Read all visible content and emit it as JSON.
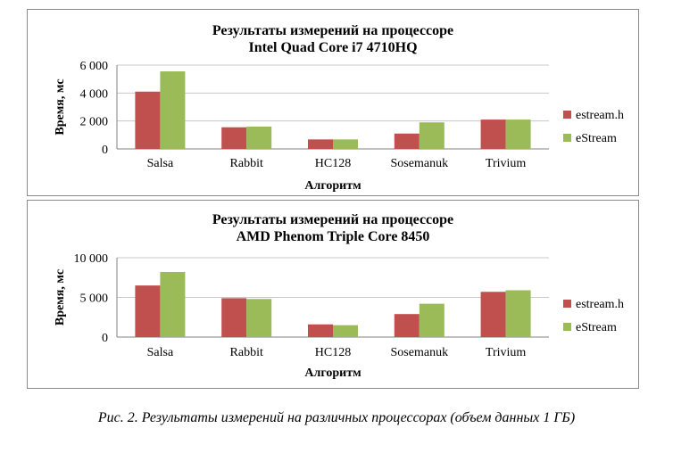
{
  "caption": "Рис. 2. Результаты измерений на различных процессорах (объем данных 1 ГБ)",
  "colors": {
    "series1": "#c0504d",
    "series2": "#9bbb59",
    "grid": "#c8c8c8",
    "axis": "#808080"
  },
  "chart_data": [
    {
      "type": "bar",
      "title_line1": "Результаты измерений на процессоре",
      "title_line2": "Intel Quad Core i7 4710HQ",
      "xlabel": "Алгоритм",
      "ylabel": "Время, мс",
      "categories": [
        "Salsa",
        "Rabbit",
        "HC128",
        "Sosemanuk",
        "Trivium"
      ],
      "ylim": [
        0,
        6000
      ],
      "yticks": [
        0,
        2000,
        4000,
        6000
      ],
      "ytick_labels": [
        "0",
        "2 000",
        "4 000",
        "6 000"
      ],
      "grid": true,
      "legend_position": "right",
      "series": [
        {
          "name": "estream.h",
          "values": [
            4100,
            1550,
            680,
            1100,
            2100
          ]
        },
        {
          "name": "eStream",
          "values": [
            5550,
            1600,
            680,
            1900,
            2100
          ]
        }
      ]
    },
    {
      "type": "bar",
      "title_line1": "Результаты измерений на процессоре",
      "title_line2": "AMD Phenom Triple Core 8450",
      "xlabel": "Алгоритм",
      "ylabel": "Время, мс",
      "categories": [
        "Salsa",
        "Rabbit",
        "HC128",
        "Sosemanuk",
        "Trivium"
      ],
      "ylim": [
        0,
        10000
      ],
      "yticks": [
        0,
        5000,
        10000
      ],
      "ytick_labels": [
        "0",
        "5 000",
        "10 000"
      ],
      "grid": true,
      "legend_position": "right",
      "series": [
        {
          "name": "estream.h",
          "values": [
            6500,
            4900,
            1600,
            2900,
            5700
          ]
        },
        {
          "name": "eStream",
          "values": [
            8200,
            4800,
            1500,
            4200,
            5900
          ]
        }
      ]
    }
  ]
}
